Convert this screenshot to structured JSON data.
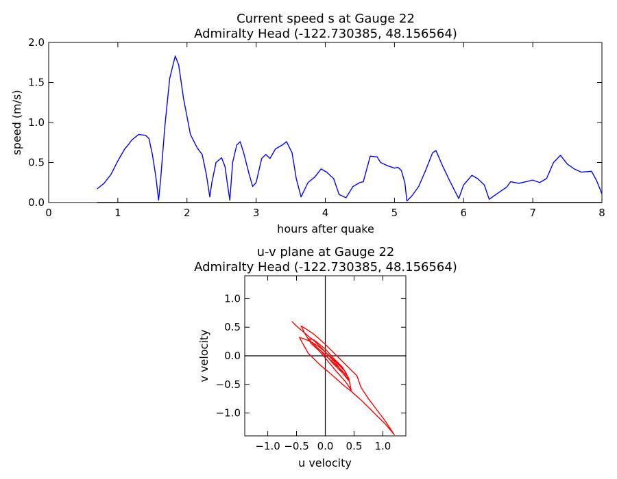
{
  "chart_data": [
    {
      "type": "line",
      "title_line1": "Current speed s at Gauge 22",
      "title_line2": "Admiralty Head  (-122.730385, 48.156564)",
      "xlabel": "hours after quake",
      "ylabel": "speed (m/s)",
      "xlim": [
        0,
        8
      ],
      "ylim": [
        0,
        2.0
      ],
      "x_ticks": [
        "0",
        "1",
        "2",
        "3",
        "4",
        "5",
        "6",
        "7",
        "8"
      ],
      "y_ticks": [
        "0.0",
        "0.5",
        "1.0",
        "1.5",
        "2.0"
      ],
      "grid": false,
      "series": [
        {
          "color": "#0000ff",
          "x": [
            0.7,
            0.8,
            0.9,
            1.0,
            1.1,
            1.15,
            1.2,
            1.3,
            1.4,
            1.45,
            1.5,
            1.55,
            1.59,
            1.62,
            1.68,
            1.75,
            1.83,
            1.88,
            1.95,
            2.05,
            2.15,
            2.22,
            2.28,
            2.33,
            2.36,
            2.42,
            2.5,
            2.55,
            2.59,
            2.62,
            2.66,
            2.72,
            2.77,
            2.82,
            2.9,
            2.95,
            3.0,
            3.08,
            3.14,
            3.2,
            3.28,
            3.38,
            3.44,
            3.52,
            3.58,
            3.65,
            3.75,
            3.85,
            3.94,
            4.02,
            4.08,
            4.12,
            4.2,
            4.3,
            4.4,
            4.5,
            4.55,
            4.65,
            4.75,
            4.8,
            4.9,
            5.0,
            5.05,
            5.1,
            5.15,
            5.18,
            5.25,
            5.35,
            5.45,
            5.55,
            5.6,
            5.7,
            5.8,
            5.9,
            5.93,
            6.0,
            6.12,
            6.2,
            6.3,
            6.37,
            6.45,
            6.55,
            6.62,
            6.68,
            6.8,
            6.9,
            7.0,
            7.1,
            7.2,
            7.3,
            7.4,
            7.5,
            7.6,
            7.7,
            7.85,
            7.92,
            8.0
          ],
          "y": [
            0.17,
            0.24,
            0.35,
            0.52,
            0.67,
            0.72,
            0.78,
            0.85,
            0.84,
            0.8,
            0.6,
            0.32,
            0.03,
            0.3,
            0.95,
            1.55,
            1.83,
            1.72,
            1.3,
            0.85,
            0.68,
            0.6,
            0.35,
            0.07,
            0.25,
            0.5,
            0.56,
            0.45,
            0.2,
            0.03,
            0.5,
            0.72,
            0.76,
            0.62,
            0.35,
            0.2,
            0.25,
            0.55,
            0.6,
            0.55,
            0.67,
            0.72,
            0.76,
            0.62,
            0.3,
            0.07,
            0.25,
            0.32,
            0.42,
            0.38,
            0.33,
            0.3,
            0.1,
            0.06,
            0.2,
            0.25,
            0.26,
            0.58,
            0.57,
            0.5,
            0.46,
            0.43,
            0.44,
            0.4,
            0.25,
            0.02,
            0.08,
            0.2,
            0.4,
            0.62,
            0.65,
            0.45,
            0.27,
            0.1,
            0.05,
            0.22,
            0.34,
            0.3,
            0.22,
            0.04,
            0.09,
            0.15,
            0.19,
            0.26,
            0.24,
            0.26,
            0.28,
            0.25,
            0.3,
            0.5,
            0.59,
            0.48,
            0.42,
            0.38,
            0.39,
            0.28,
            0.11
          ]
        }
      ],
      "baseline": {
        "color": "#000000",
        "x": [
          0.7,
          8.0
        ],
        "y": [
          0.0,
          0.0
        ]
      }
    },
    {
      "type": "line",
      "title_line1": "u-v plane at Gauge 22",
      "title_line2": "Admiralty Head  (-122.730385, 48.156564)",
      "xlabel": "u velocity",
      "ylabel": "v velocity",
      "xlim": [
        -1.4,
        1.4
      ],
      "ylim": [
        -1.4,
        1.4
      ],
      "x_ticks": [
        "-1.0",
        "-0.5",
        "0.0",
        "0.5",
        "1.0"
      ],
      "y_ticks": [
        "-1.0",
        "-0.5",
        "0.0",
        "0.5",
        "1.0"
      ],
      "axes_lines": true,
      "grid": false,
      "series": [
        {
          "color": "#ff0000",
          "x": [
            -0.58,
            -0.5,
            -0.42,
            -0.3,
            -0.18,
            -0.05,
            0.08,
            0.2,
            0.3,
            0.42,
            0.45,
            0.35,
            0.2,
            0.05,
            -0.1,
            -0.25,
            -0.35,
            -0.42,
            -0.35,
            -0.2,
            0.0,
            0.2,
            0.4,
            0.55,
            0.62,
            0.75,
            0.9,
            1.05,
            1.2,
            1.05,
            0.85,
            0.65,
            0.45,
            0.3,
            0.1,
            -0.1,
            -0.3,
            -0.45,
            -0.38,
            -0.25,
            -0.1,
            0.05,
            0.2,
            0.35,
            0.42,
            0.3,
            0.15,
            0.0,
            -0.15,
            -0.3,
            -0.2,
            0.0,
            0.15,
            0.3,
            0.38,
            0.25,
            0.1,
            -0.05,
            0.0
          ],
          "y": [
            0.6,
            0.52,
            0.45,
            0.35,
            0.25,
            0.12,
            -0.02,
            -0.15,
            -0.3,
            -0.45,
            -0.6,
            -0.45,
            -0.28,
            -0.1,
            0.08,
            0.22,
            0.38,
            0.52,
            0.48,
            0.38,
            0.2,
            0.0,
            -0.2,
            -0.35,
            -0.55,
            -0.75,
            -0.95,
            -1.15,
            -1.38,
            -1.2,
            -1.0,
            -0.8,
            -0.62,
            -0.5,
            -0.32,
            -0.15,
            0.05,
            0.32,
            0.3,
            0.25,
            0.15,
            0.02,
            -0.12,
            -0.28,
            -0.42,
            -0.3,
            -0.15,
            0.02,
            0.15,
            0.3,
            0.28,
            0.12,
            -0.05,
            -0.2,
            -0.35,
            -0.22,
            -0.08,
            0.05,
            0.02
          ]
        }
      ]
    }
  ]
}
